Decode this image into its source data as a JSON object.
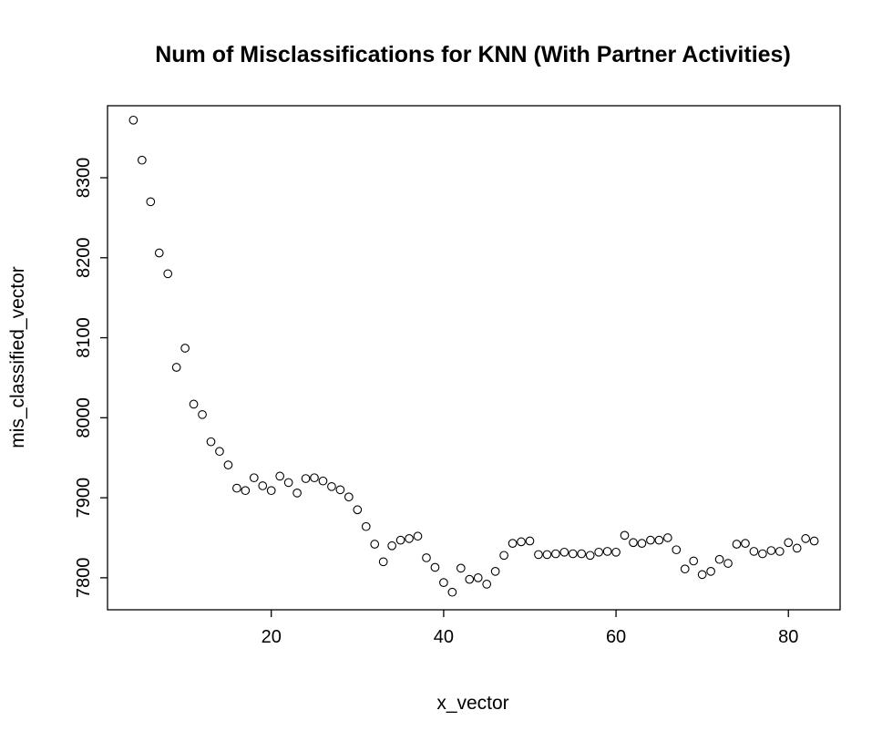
{
  "chart_data": {
    "type": "scatter",
    "title": "Num of Misclassifications for KNN (With Partner Activities)",
    "xlabel": "x_vector",
    "ylabel": "mis_classified_vector",
    "xlim": [
      1,
      86
    ],
    "ylim": [
      7760,
      8390
    ],
    "x_ticks": [
      20,
      40,
      60,
      80
    ],
    "y_ticks": [
      7800,
      7900,
      8000,
      8100,
      8200,
      8300
    ],
    "grid": false,
    "legend": "none",
    "marker": "open-circle",
    "x": [
      4,
      5,
      6,
      7,
      8,
      9,
      10,
      11,
      12,
      13,
      14,
      15,
      16,
      17,
      18,
      19,
      20,
      21,
      22,
      23,
      24,
      25,
      26,
      27,
      28,
      29,
      30,
      31,
      32,
      33,
      34,
      35,
      36,
      37,
      38,
      39,
      40,
      41,
      42,
      43,
      44,
      45,
      46,
      47,
      48,
      49,
      50,
      51,
      52,
      53,
      54,
      55,
      56,
      57,
      58,
      59,
      60,
      61,
      62,
      63,
      64,
      65,
      66,
      67,
      68,
      69,
      70,
      71,
      72,
      73,
      74,
      75,
      76,
      77,
      78,
      79,
      80,
      81,
      82,
      83
    ],
    "y": [
      8372,
      8322,
      8270,
      8206,
      8180,
      8063,
      8087,
      8017,
      8004,
      7970,
      7958,
      7941,
      7912,
      7909,
      7925,
      7915,
      7909,
      7927,
      7919,
      7906,
      7924,
      7925,
      7921,
      7914,
      7910,
      7901,
      7885,
      7864,
      7842,
      7820,
      7840,
      7847,
      7849,
      7852,
      7825,
      7813,
      7794,
      7782,
      7812,
      7798,
      7800,
      7792,
      7808,
      7828,
      7843,
      7845,
      7846,
      7829,
      7829,
      7830,
      7832,
      7830,
      7830,
      7828,
      7832,
      7833,
      7832,
      7853,
      7844,
      7843,
      7847,
      7847,
      7850,
      7835,
      7811,
      7821,
      7804,
      7808,
      7823,
      7818,
      7842,
      7843,
      7833,
      7830,
      7834,
      7833,
      7844,
      7837,
      7849,
      7846
    ]
  }
}
